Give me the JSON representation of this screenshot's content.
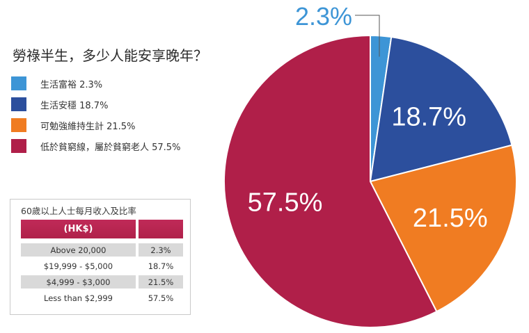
{
  "title": "勞祿半生，多少人能安享晚年？",
  "legend": [
    {
      "label": "生活富裕 2.3%",
      "color": "#3d95d6"
    },
    {
      "label": "生活安穩 18.7%",
      "color": "#2c4f9d"
    },
    {
      "label": "可勉強維持生計 21.5%",
      "color": "#f07c22"
    },
    {
      "label": "低於貧窮線，屬於貧窮老人 57.5%",
      "color": "#b01f49"
    }
  ],
  "table": {
    "title": "60歲以上人士每月收入及比率",
    "header_range": "(HK$)",
    "header_pct": "",
    "rows": [
      {
        "range": "Above 20,000",
        "pct": "2.3%"
      },
      {
        "range": "$19,999 - $5,000",
        "pct": "18.7%"
      },
      {
        "range": "$4,999 - $3,000",
        "pct": "21.5%"
      },
      {
        "range": "Less than $2,999",
        "pct": "57.5%"
      }
    ]
  },
  "chart_data": {
    "type": "pie",
    "title": "勞祿半生，多少人能安享晚年？",
    "start_angle_deg": 0,
    "direction": "clockwise",
    "slices": [
      {
        "label": "生活富裕",
        "value": 2.3,
        "display": "2.3%",
        "color": "#3d95d6",
        "label_color": "#3d95d6"
      },
      {
        "label": "生活安穩",
        "value": 18.7,
        "display": "18.7%",
        "color": "#2c4f9d",
        "label_color": "#ffffff"
      },
      {
        "label": "可勉強維持生計",
        "value": 21.5,
        "display": "21.5%",
        "color": "#f07c22",
        "label_color": "#ffffff"
      },
      {
        "label": "低於貧窮線，屬於貧窮老人",
        "value": 57.5,
        "display": "57.5%",
        "color": "#b01f49",
        "label_color": "#ffffff"
      }
    ]
  }
}
